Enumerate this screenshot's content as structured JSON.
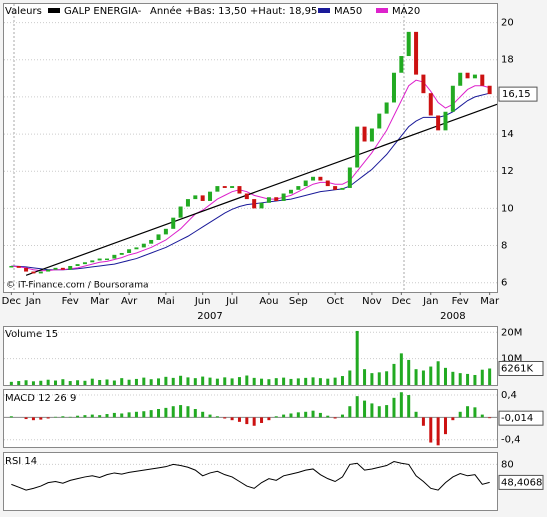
{
  "chart_data": [
    {
      "type": "candlestick",
      "label": "Valeurs",
      "annotation": "Année +Bas: 13,50 +Haut: 18,95",
      "source": "© IT-Finance.com / Boursorama",
      "up_color": "#22aa22",
      "down_color": "#cc1111",
      "series": [
        {
          "name": "GALP ENERGIA-",
          "color": "#000000",
          "values": [
            6.9,
            6.8,
            6.6,
            6.5,
            6.6,
            6.7,
            6.8,
            6.7,
            6.9,
            7.0,
            7.1,
            7.2,
            7.3,
            7.3,
            7.5,
            7.6,
            7.8,
            7.9,
            8.1,
            8.3,
            8.6,
            8.9,
            9.5,
            10.1,
            10.5,
            10.7,
            10.4,
            10.9,
            11.2,
            11.1,
            11.2,
            10.8,
            10.5,
            10.0,
            10.3,
            10.6,
            10.4,
            10.8,
            11.0,
            11.2,
            11.5,
            11.7,
            11.5,
            11.2,
            11.0,
            11.1,
            12.2,
            14.4,
            13.6,
            14.3,
            15.1,
            15.7,
            17.3,
            18.2,
            19.5,
            17.2,
            16.2,
            15.0,
            14.2,
            15.2,
            16.6,
            17.3,
            17.0,
            17.2,
            16.6,
            16.15
          ],
          "value_labels": [
            null,
            null,
            null,
            null,
            null,
            null,
            null,
            null,
            null,
            null,
            null,
            null,
            null,
            null,
            null,
            null,
            null,
            null,
            null,
            null,
            null,
            null,
            null,
            null,
            null,
            null,
            null,
            null,
            null,
            null,
            null,
            null,
            null,
            null,
            null,
            null,
            null,
            null,
            null,
            null,
            null,
            null,
            null,
            null,
            null,
            null,
            null,
            null,
            null,
            null,
            null,
            null,
            null,
            null,
            null,
            null,
            null,
            null,
            null,
            null,
            null,
            null,
            null,
            null,
            null,
            "16,15"
          ]
        },
        {
          "name": "MA50",
          "color": "#1a1a99",
          "values": [
            6.9,
            6.88,
            6.85,
            6.8,
            6.75,
            6.7,
            6.7,
            6.7,
            6.72,
            6.75,
            6.8,
            6.85,
            6.9,
            6.95,
            7.0,
            7.1,
            7.2,
            7.3,
            7.45,
            7.6,
            7.75,
            7.9,
            8.1,
            8.3,
            8.5,
            8.75,
            9.0,
            9.25,
            9.5,
            9.75,
            9.95,
            10.1,
            10.2,
            10.25,
            10.3,
            10.35,
            10.4,
            10.45,
            10.5,
            10.6,
            10.7,
            10.8,
            10.9,
            10.95,
            11.0,
            11.05,
            11.2,
            11.5,
            11.8,
            12.1,
            12.5,
            12.9,
            13.4,
            13.9,
            14.4,
            14.7,
            14.9,
            14.9,
            14.9,
            15.0,
            15.2,
            15.5,
            15.8,
            16.0,
            16.1,
            16.2
          ]
        },
        {
          "name": "MA20",
          "color": "#dd22cc",
          "values": [
            6.9,
            6.85,
            6.8,
            6.7,
            6.65,
            6.65,
            6.7,
            6.7,
            6.75,
            6.8,
            6.9,
            7.0,
            7.1,
            7.15,
            7.25,
            7.35,
            7.5,
            7.6,
            7.75,
            7.9,
            8.1,
            8.3,
            8.6,
            8.9,
            9.3,
            9.7,
            9.9,
            10.2,
            10.5,
            10.7,
            10.9,
            11.0,
            10.9,
            10.7,
            10.6,
            10.5,
            10.5,
            10.6,
            10.7,
            10.9,
            11.1,
            11.3,
            11.4,
            11.4,
            11.3,
            11.3,
            11.5,
            12.0,
            12.5,
            13.0,
            13.6,
            14.2,
            15.0,
            15.8,
            16.6,
            16.9,
            16.8,
            16.3,
            15.7,
            15.4,
            15.6,
            16.0,
            16.4,
            16.6,
            16.6,
            16.5
          ]
        }
      ],
      "trendline": {
        "x": [
          2,
          66
        ],
        "values": [
          6.4,
          15.6
        ]
      },
      "xlim": [
        -1,
        66
      ],
      "xticks": [
        {
          "value": 0,
          "label": "Dec"
        },
        {
          "value": 3,
          "label": "Jan"
        },
        {
          "value": 8,
          "label": "Fev"
        },
        {
          "value": 12,
          "label": "Mar"
        },
        {
          "value": 16,
          "label": "Avr"
        },
        {
          "value": 21,
          "label": "Mai"
        },
        {
          "value": 26,
          "label": "Jun"
        },
        {
          "value": 30,
          "label": "Jul"
        },
        {
          "value": 35,
          "label": "Aou"
        },
        {
          "value": 39,
          "label": "Sep"
        },
        {
          "value": 44,
          "label": "Oct"
        },
        {
          "value": 49,
          "label": "Nov"
        },
        {
          "value": 53,
          "label": "Dec"
        },
        {
          "value": 57,
          "label": "Jan"
        },
        {
          "value": 61,
          "label": "Fev"
        },
        {
          "value": 65,
          "label": "Mar"
        }
      ],
      "year_ticks": [
        {
          "value": 27,
          "label": "2007"
        },
        {
          "value": 60,
          "label": "2008"
        }
      ],
      "ylim": [
        5.5,
        21
      ],
      "yticks": [
        6,
        8,
        10,
        12,
        14,
        16,
        18,
        20
      ],
      "grid": true
    },
    {
      "type": "bar",
      "title": "Volume 15",
      "color": "#22aa22",
      "values": [
        1.2,
        1.5,
        1.8,
        1.4,
        1.6,
        2.0,
        1.7,
        2.2,
        1.5,
        1.8,
        1.6,
        2.4,
        1.9,
        2.1,
        1.7,
        2.6,
        2.0,
        2.3,
        2.8,
        2.2,
        2.5,
        3.1,
        2.7,
        3.5,
        2.9,
        2.6,
        3.2,
        2.8,
        2.4,
        2.9,
        2.5,
        3.0,
        3.6,
        2.7,
        2.4,
        2.2,
        2.6,
        2.8,
        2.3,
        2.5,
        2.7,
        2.9,
        2.6,
        2.4,
        2.8,
        3.4,
        5.5,
        20.5,
        6.0,
        4.5,
        4.8,
        5.2,
        8.0,
        12.0,
        9.5,
        6.0,
        5.5,
        7.0,
        9.0,
        6.5,
        5.0,
        4.5,
        4.2,
        3.8,
        5.8,
        6.261
      ],
      "value_labels": [
        null,
        null,
        null,
        null,
        null,
        null,
        null,
        null,
        null,
        null,
        null,
        null,
        null,
        null,
        null,
        null,
        null,
        null,
        null,
        null,
        null,
        null,
        null,
        null,
        null,
        null,
        null,
        null,
        null,
        null,
        null,
        null,
        null,
        null,
        null,
        null,
        null,
        null,
        null,
        null,
        null,
        null,
        null,
        null,
        null,
        null,
        null,
        null,
        null,
        null,
        null,
        null,
        null,
        null,
        null,
        null,
        null,
        null,
        null,
        null,
        null,
        null,
        null,
        null,
        null,
        "6261K"
      ],
      "ylim": [
        0,
        22
      ],
      "yticks": [
        {
          "value": 20,
          "label": "20M"
        },
        {
          "value": 10,
          "label": "10M"
        }
      ]
    },
    {
      "type": "histogram-bar",
      "title": "MACD 12 26 9",
      "up_color": "#22aa22",
      "down_color": "#cc1111",
      "values": [
        0.02,
        0.0,
        -0.03,
        -0.05,
        -0.04,
        -0.02,
        0.01,
        0.02,
        0.01,
        0.03,
        0.04,
        0.05,
        0.04,
        0.06,
        0.08,
        0.07,
        0.09,
        0.1,
        0.11,
        0.13,
        0.15,
        0.17,
        0.2,
        0.22,
        0.2,
        0.15,
        0.1,
        0.05,
        0.02,
        -0.02,
        -0.05,
        -0.08,
        -0.12,
        -0.15,
        -0.1,
        -0.05,
        0.02,
        0.05,
        0.07,
        0.09,
        0.1,
        0.12,
        0.08,
        0.03,
        -0.02,
        0.05,
        0.2,
        0.38,
        0.3,
        0.25,
        0.2,
        0.22,
        0.35,
        0.45,
        0.4,
        0.1,
        -0.15,
        -0.45,
        -0.5,
        -0.3,
        -0.05,
        0.1,
        0.2,
        0.18,
        0.05,
        -0.014
      ],
      "value_labels": [
        null,
        null,
        null,
        null,
        null,
        null,
        null,
        null,
        null,
        null,
        null,
        null,
        null,
        null,
        null,
        null,
        null,
        null,
        null,
        null,
        null,
        null,
        null,
        null,
        null,
        null,
        null,
        null,
        null,
        null,
        null,
        null,
        null,
        null,
        null,
        null,
        null,
        null,
        null,
        null,
        null,
        null,
        null,
        null,
        null,
        null,
        null,
        null,
        null,
        null,
        null,
        null,
        null,
        null,
        null,
        null,
        null,
        null,
        null,
        null,
        null,
        null,
        null,
        null,
        null,
        "-0,014"
      ],
      "ylim": [
        -0.53,
        0.49
      ],
      "yticks": [
        {
          "value": 0.4,
          "label": "0,4"
        },
        {
          "value": -0.4,
          "label": "-0,4"
        }
      ]
    },
    {
      "type": "line",
      "title": "RSI 14",
      "color": "#000000",
      "values": [
        45,
        40,
        35,
        38,
        42,
        48,
        50,
        47,
        52,
        55,
        58,
        60,
        57,
        62,
        65,
        63,
        66,
        68,
        70,
        72,
        74,
        76,
        80,
        78,
        75,
        70,
        60,
        65,
        68,
        62,
        58,
        50,
        42,
        38,
        48,
        55,
        52,
        60,
        63,
        66,
        70,
        72,
        62,
        55,
        50,
        58,
        80,
        82,
        70,
        72,
        75,
        78,
        85,
        82,
        80,
        60,
        50,
        38,
        35,
        48,
        58,
        64,
        60,
        62,
        45,
        48.4068
      ],
      "value_labels": [
        null,
        null,
        null,
        null,
        null,
        null,
        null,
        null,
        null,
        null,
        null,
        null,
        null,
        null,
        null,
        null,
        null,
        null,
        null,
        null,
        null,
        null,
        null,
        null,
        null,
        null,
        null,
        null,
        null,
        null,
        null,
        null,
        null,
        null,
        null,
        null,
        null,
        null,
        null,
        null,
        null,
        null,
        null,
        null,
        null,
        null,
        null,
        null,
        null,
        null,
        null,
        null,
        null,
        null,
        null,
        null,
        null,
        null,
        null,
        null,
        null,
        null,
        null,
        null,
        null,
        "48,4068"
      ],
      "ylim": [
        0,
        100
      ],
      "yticks": [
        80
      ]
    }
  ]
}
